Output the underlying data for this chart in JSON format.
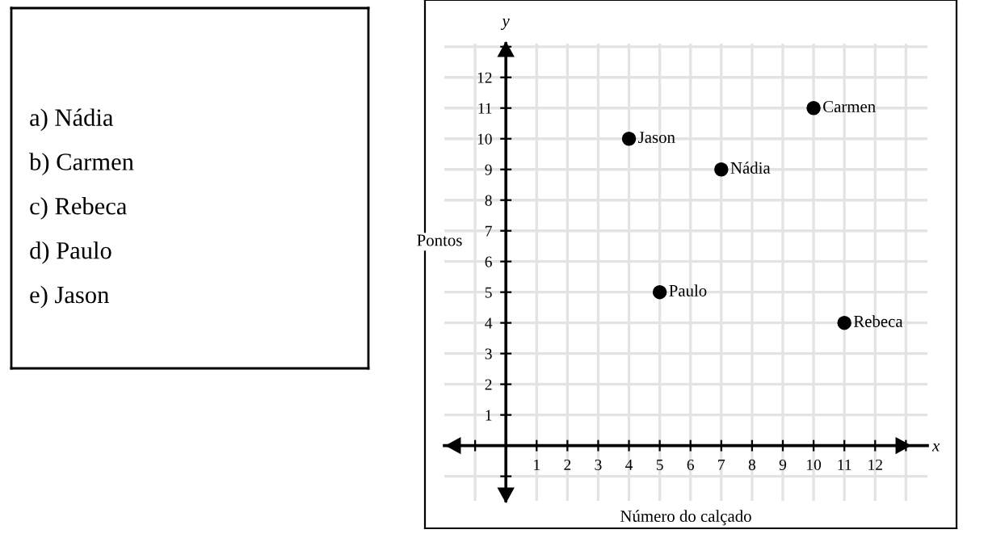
{
  "chart_data": [
    {
      "type": "other",
      "annotations": [
        "a) Nádia",
        "b) Carmen",
        "c) Rebeca",
        "d) Paulo",
        "e) Jason"
      ]
    },
    {
      "type": "scatter",
      "xlabel": "Número do calçado",
      "ylabel": "Pontos",
      "annotations": [
        "x",
        "y"
      ],
      "x": [
        7,
        10,
        11,
        5,
        4
      ],
      "values": [
        9,
        11,
        4,
        5,
        10
      ],
      "value_labels": [
        "Nádia",
        "Carmen",
        "Rebeca",
        "Paulo",
        "Jason"
      ],
      "color": "#000000",
      "marker": "circle",
      "grid": true,
      "xlim": [
        -2,
        13.7
      ],
      "ylim": [
        -1.8,
        13.1
      ],
      "xticks": [
        {
          "value": -1,
          "label": null
        },
        1,
        2,
        3,
        4,
        5,
        6,
        7,
        8,
        9,
        10,
        11,
        12,
        {
          "value": 13,
          "label": null
        }
      ],
      "yticks": [
        {
          "value": -1,
          "label": null
        },
        1,
        2,
        3,
        4,
        5,
        6,
        7,
        8,
        9,
        10,
        11,
        12,
        {
          "value": 13,
          "label": null
        }
      ]
    }
  ]
}
